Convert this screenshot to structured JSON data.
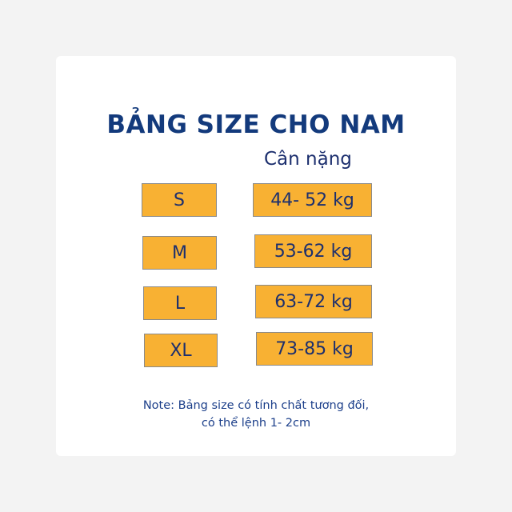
{
  "title": "BẢNG SIZE CHO NAM",
  "column_header": "Cân nặng",
  "rows": [
    {
      "size": "S",
      "weight": "44- 52 kg"
    },
    {
      "size": "M",
      "weight": "53-62 kg"
    },
    {
      "size": "L",
      "weight": "63-72 kg"
    },
    {
      "size": "XL",
      "weight": "73-85 kg"
    }
  ],
  "note": {
    "line1": "Note: Bảng size có tính chất tương đối,",
    "line2": "có thể lệnh 1- 2cm"
  },
  "colors": {
    "box": "#f8b133",
    "title": "#133a7c"
  }
}
